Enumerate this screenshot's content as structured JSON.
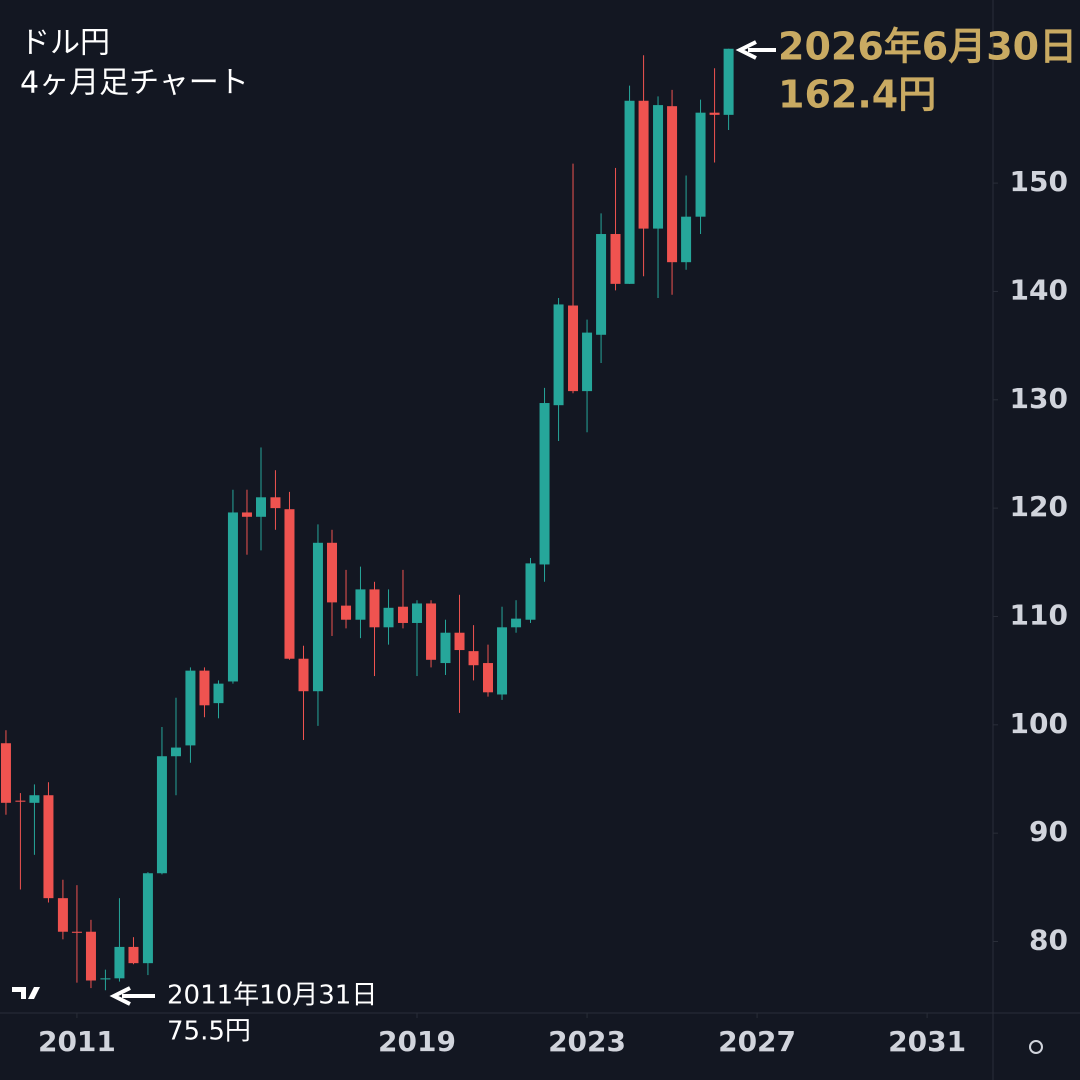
{
  "chart_data": {
    "type": "candlestick",
    "title": "ドル円",
    "subtitle": "4ヶ月足チャート",
    "annotations": [
      {
        "date": "2026年6月30日",
        "price": "162.4円"
      },
      {
        "date": "2011年10月31日",
        "price": "75.5円"
      }
    ],
    "up_color": "#26a69a",
    "down_color": "#ef5350",
    "x": [
      2009.33,
      2009.67,
      2010,
      2010.33,
      2010.67,
      2011,
      2011.33,
      2011.67,
      2012,
      2012.33,
      2012.67,
      2013,
      2013.33,
      2013.67,
      2014,
      2014.33,
      2014.67,
      2015,
      2015.33,
      2015.67,
      2016,
      2016.33,
      2016.67,
      2017,
      2017.33,
      2017.67,
      2018,
      2018.33,
      2018.67,
      2019,
      2019.33,
      2019.67,
      2020,
      2020.33,
      2020.67,
      2021,
      2021.33,
      2021.67,
      2022,
      2022.33,
      2022.67,
      2023,
      2023.33,
      2023.67,
      2024,
      2024.33,
      2024.67,
      2025,
      2025.33,
      2025.67,
      2026,
      2026.33
    ],
    "open": [
      98.3,
      93.0,
      92.8,
      93.5,
      84.0,
      80.9,
      80.9,
      76.5,
      76.6,
      79.5,
      78.0,
      86.3,
      97.1,
      98.1,
      105.0,
      102.0,
      104.0,
      119.6,
      119.2,
      121.0,
      119.9,
      106.1,
      103.1,
      116.8,
      111.0,
      109.7,
      112.5,
      109.0,
      110.9,
      109.4,
      111.2,
      105.7,
      108.5,
      106.8,
      105.7,
      102.8,
      109.0,
      109.7,
      114.8,
      129.5,
      138.7,
      130.8,
      136.0,
      145.3,
      140.7,
      157.6,
      145.8,
      157.1,
      142.7,
      146.9,
      156.5,
      156.3
    ],
    "high": [
      99.5,
      93.7,
      94.5,
      94.7,
      85.7,
      85.2,
      82.0,
      77.4,
      84.0,
      80.4,
      86.4,
      99.8,
      102.5,
      105.3,
      105.3,
      104.1,
      121.7,
      121.7,
      125.6,
      123.5,
      121.5,
      107.3,
      118.5,
      118.0,
      114.3,
      114.6,
      113.2,
      112.5,
      114.3,
      111.5,
      111.5,
      109.7,
      112.0,
      109.2,
      107.4,
      110.9,
      111.5,
      115.4,
      131.1,
      139.4,
      151.8,
      137.4,
      147.2,
      151.4,
      159.0,
      161.8,
      158.0,
      158.6,
      150.7,
      157.7,
      160.6,
      162.4
    ],
    "low": [
      91.7,
      84.8,
      88.0,
      83.6,
      80.2,
      76.2,
      75.7,
      75.5,
      76.3,
      77.9,
      76.9,
      86.2,
      93.5,
      96.5,
      100.7,
      100.6,
      103.8,
      115.7,
      116.1,
      118.0,
      106.0,
      98.6,
      99.9,
      108.2,
      108.9,
      108.0,
      104.5,
      107.4,
      108.9,
      104.5,
      105.3,
      104.6,
      101.1,
      104.1,
      102.6,
      102.3,
      108.5,
      109.4,
      113.2,
      126.2,
      130.6,
      127.0,
      133.4,
      140.1,
      140.7,
      141.4,
      139.4,
      139.7,
      142.0,
      145.3,
      151.9,
      154.9
    ],
    "close": [
      92.8,
      92.9,
      93.5,
      84.0,
      80.9,
      80.8,
      76.4,
      76.6,
      79.5,
      78.0,
      86.3,
      97.1,
      97.9,
      105.0,
      101.8,
      103.8,
      119.6,
      119.2,
      121.0,
      120.0,
      106.1,
      103.1,
      116.8,
      111.3,
      109.7,
      112.5,
      109.0,
      110.8,
      109.4,
      111.2,
      106.0,
      108.5,
      106.9,
      105.5,
      103.0,
      109.0,
      109.8,
      114.9,
      129.7,
      138.8,
      130.8,
      136.2,
      145.3,
      140.7,
      157.6,
      145.8,
      157.2,
      142.7,
      146.9,
      156.5,
      156.3,
      162.4
    ],
    "xlim": [
      2009.19,
      2032.55
    ],
    "xticks": [
      2011,
      2019,
      2023,
      2027,
      2031
    ],
    "ylim": [
      73.4,
      166.9
    ],
    "yticks": [
      80,
      90,
      100,
      110,
      120,
      130,
      140,
      150
    ]
  }
}
